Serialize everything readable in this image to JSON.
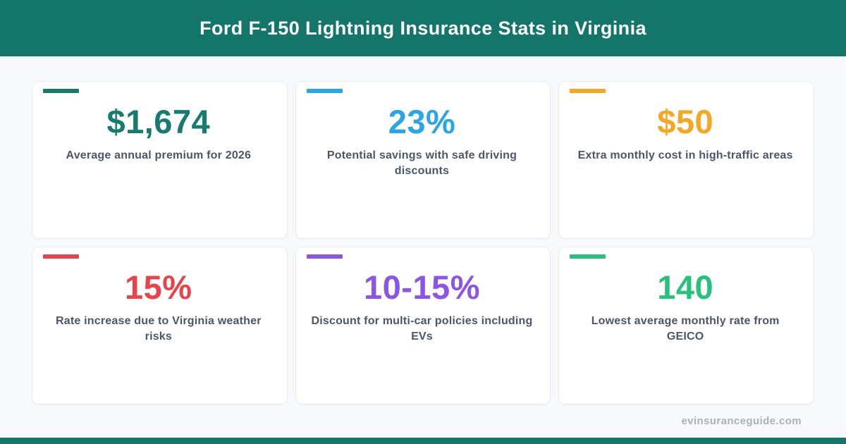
{
  "header": {
    "title": "Ford F-150 Lightning Insurance Stats in Virginia",
    "bg_color": "#14756a"
  },
  "cards": [
    {
      "value": "$1,674",
      "label": "Average annual premium for 2026",
      "color": "#177c6e"
    },
    {
      "value": "23%",
      "label": "Potential savings with safe driving\ndiscounts",
      "color": "#2aa5e5"
    },
    {
      "value": "$50",
      "label": "Extra monthly cost in high-traffic areas",
      "color": "#f5a623"
    },
    {
      "value": "15%",
      "label": "Rate increase due to Virginia weather\nrisks",
      "color": "#e8434a"
    },
    {
      "value": "10-15%",
      "label": "Discount for multi-car policies including\nEVs",
      "color": "#8b55e8"
    },
    {
      "value": "140",
      "label": "Lowest average monthly rate from\nGEICO",
      "color": "#27c07d"
    }
  ],
  "footer": {
    "watermark": "evinsuranceguide.com"
  },
  "colors": {
    "page_bg": "#f7f9fc",
    "card_bg": "#ffffff",
    "card_border": "#e9edf3",
    "label_text": "#4b566b",
    "watermark_text": "#a9b1bf"
  },
  "chart_data": {
    "type": "table",
    "title": "Ford F-150 Lightning Insurance Stats in Virginia",
    "columns": [
      "value",
      "description"
    ],
    "rows": [
      [
        "$1,674",
        "Average annual premium for 2026"
      ],
      [
        "23%",
        "Potential savings with safe driving discounts"
      ],
      [
        "$50",
        "Extra monthly cost in high-traffic areas"
      ],
      [
        "15%",
        "Rate increase due to Virginia weather risks"
      ],
      [
        "10-15%",
        "Discount for multi-car policies including EVs"
      ],
      [
        "140",
        "Lowest average monthly rate from GEICO"
      ]
    ]
  }
}
